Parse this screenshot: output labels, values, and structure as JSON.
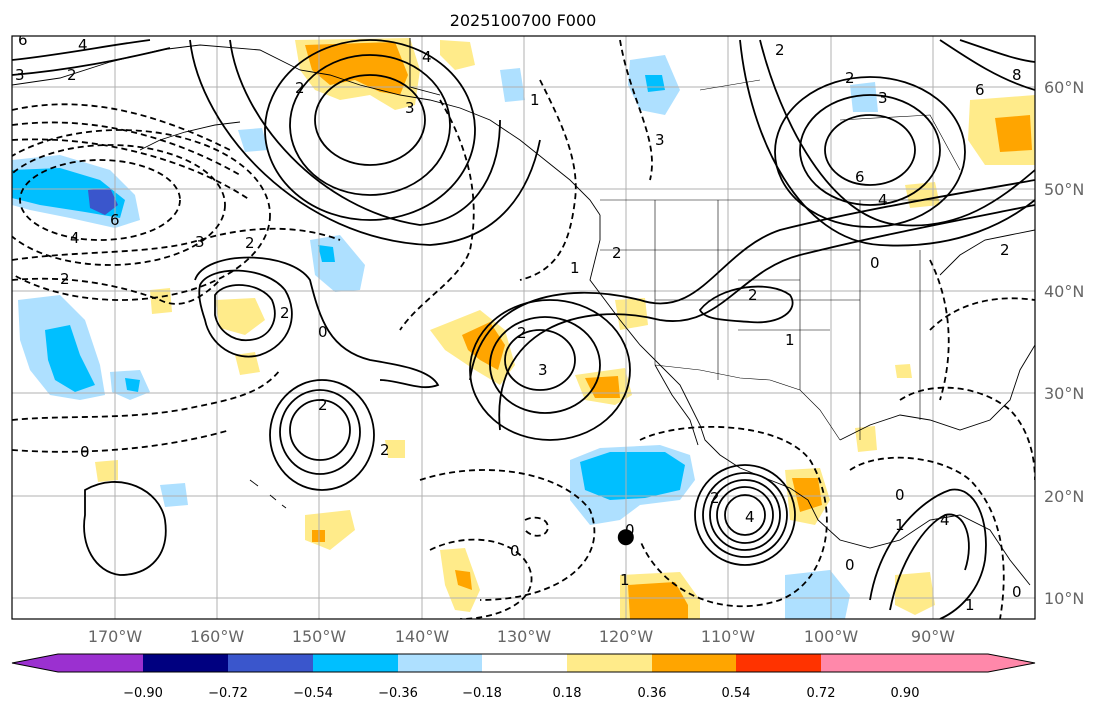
{
  "map": {
    "title": "2025100700 F000",
    "projection": "plate carree",
    "lon_range": [
      -180,
      -80
    ],
    "lat_range": [
      8,
      65
    ],
    "grid": true,
    "lon_ticks": [
      "170°W",
      "160°W",
      "150°W",
      "140°W",
      "130°W",
      "120°W",
      "110°W",
      "100°W",
      "90°W"
    ],
    "lat_ticks": [
      "60°N",
      "50°N",
      "40°N",
      "30°N",
      "20°N",
      "10°N"
    ],
    "marker": {
      "name": "storm-center-dot",
      "lon": -120,
      "lat": 16
    }
  },
  "colorbar": {
    "orientation": "horizontal",
    "extend": "both",
    "colors": [
      "#9b30d0",
      "#000080",
      "#3a56cc",
      "#00bfff",
      "#aee0ff",
      "#ffffff",
      "#ffeb8a",
      "#ffa500",
      "#ff3300",
      "#b22222",
      "#ff88aa"
    ],
    "tick_labels": [
      "−0.90",
      "−0.72",
      "−0.54",
      "−0.36",
      "−0.18",
      "0.18",
      "0.36",
      "0.54",
      "0.72",
      "0.90"
    ]
  },
  "contour_labels": [
    "6",
    "4",
    "2",
    "3",
    "6",
    "2",
    "4",
    "3",
    "2",
    "2",
    "2",
    "0",
    "2",
    "4",
    "3",
    "2",
    "0",
    "2",
    "1",
    "3",
    "1",
    "2",
    "3",
    "6",
    "4",
    "6",
    "2",
    "0",
    "2",
    "1",
    "0",
    "1",
    "0",
    "2",
    "4",
    "0",
    "1",
    "4",
    "8",
    "2",
    "0",
    "0",
    "3",
    "2",
    "1"
  ]
}
